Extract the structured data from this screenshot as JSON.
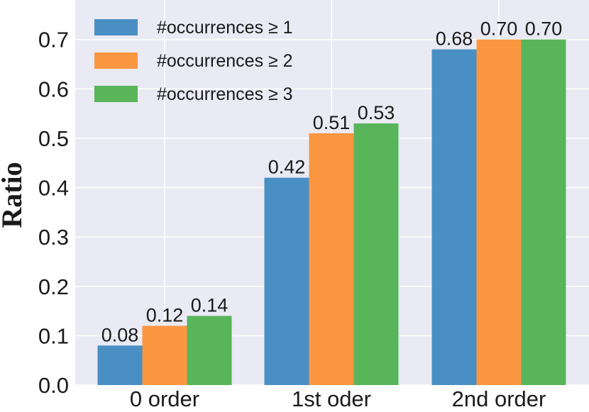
{
  "chart_data": {
    "type": "bar",
    "ylabel": "Ratio",
    "xlabel": "",
    "categories": [
      "0 order",
      "1st oder",
      "2nd order"
    ],
    "series": [
      {
        "name": "#occurrences ≥ 1",
        "values": [
          0.08,
          0.42,
          0.68
        ],
        "color": "#4a8fc4",
        "labels": [
          "0.08",
          "0.42",
          "0.68"
        ]
      },
      {
        "name": "#occurrences ≥ 2",
        "values": [
          0.12,
          0.51,
          0.7
        ],
        "color": "#fb9641",
        "labels": [
          "0.12",
          "0.51",
          "0.70"
        ]
      },
      {
        "name": "#occurrences ≥ 3",
        "values": [
          0.14,
          0.53,
          0.7
        ],
        "color": "#58b55a",
        "labels": [
          "0.14",
          "0.53",
          "0.70"
        ]
      }
    ],
    "ylim": [
      0,
      0.78
    ],
    "yticks": [
      0.0,
      0.1,
      0.2,
      0.3,
      0.4,
      0.5,
      0.6,
      0.7
    ],
    "ytick_labels": [
      "0.0",
      "0.1",
      "0.2",
      "0.3",
      "0.4",
      "0.5",
      "0.6",
      "0.7"
    ],
    "grid": true,
    "background": "#e9eaf3",
    "legend_position": "top-left"
  }
}
